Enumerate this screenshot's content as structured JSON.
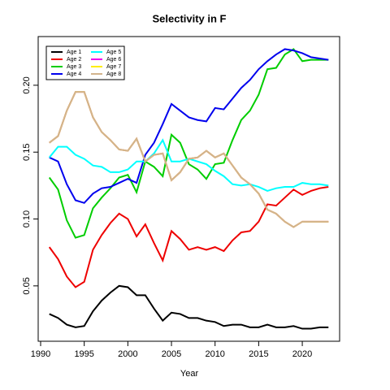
{
  "chart_data": {
    "type": "line",
    "title": "Selectivity in F",
    "x_label": "Year",
    "x": [
      1991,
      1992,
      1993,
      1994,
      1995,
      1996,
      1997,
      1998,
      1999,
      2000,
      2001,
      2002,
      2003,
      2004,
      2005,
      2006,
      2007,
      2008,
      2009,
      2010,
      2011,
      2012,
      2013,
      2014,
      2015,
      2016,
      2017,
      2018,
      2019,
      2020,
      2021,
      2022,
      2023
    ],
    "xlim": [
      1989.72,
      2024.28
    ],
    "xticks": [
      1990,
      1995,
      2000,
      2005,
      2010,
      2015,
      2020
    ],
    "ylim": [
      0.0086,
      0.2364
    ],
    "yticks": [
      {
        "value": 0.05,
        "label": "0.05"
      },
      {
        "value": 0.1,
        "label": "0.10"
      },
      {
        "value": 0.15,
        "label": "0.15"
      },
      {
        "value": 0.2,
        "label": "0.20"
      }
    ],
    "legend": "top-left",
    "series": [
      {
        "name": "Age 1",
        "color": "#000000",
        "values": [
          0.029,
          0.026,
          0.021,
          0.019,
          0.02,
          0.031,
          0.039,
          0.045,
          0.05,
          0.049,
          0.043,
          0.043,
          0.033,
          0.024,
          0.03,
          0.029,
          0.026,
          0.026,
          0.024,
          0.023,
          0.02,
          0.021,
          0.021,
          0.019,
          0.019,
          0.021,
          0.019,
          0.019,
          0.02,
          0.018,
          0.018,
          0.019,
          0.019
        ]
      },
      {
        "name": "Age 2",
        "color": "#ee0000",
        "values": [
          0.079,
          0.07,
          0.057,
          0.049,
          0.053,
          0.077,
          0.088,
          0.097,
          0.104,
          0.1,
          0.087,
          0.096,
          0.082,
          0.069,
          0.091,
          0.085,
          0.077,
          0.079,
          0.077,
          0.079,
          0.076,
          0.084,
          0.09,
          0.091,
          0.098,
          0.111,
          0.11,
          0.116,
          0.122,
          0.118,
          0.121,
          0.123,
          0.124
        ]
      },
      {
        "name": "Age 3",
        "color": "#00cd00",
        "values": [
          0.131,
          0.122,
          0.099,
          0.086,
          0.088,
          0.108,
          0.116,
          0.123,
          0.131,
          0.133,
          0.12,
          0.143,
          0.139,
          0.132,
          0.163,
          0.157,
          0.141,
          0.137,
          0.13,
          0.141,
          0.142,
          0.159,
          0.174,
          0.181,
          0.193,
          0.212,
          0.213,
          0.223,
          0.227,
          0.218,
          0.219,
          0.219,
          0.219
        ]
      },
      {
        "name": "Age 4",
        "color": "#0000ee",
        "values": [
          0.146,
          0.143,
          0.126,
          0.114,
          0.112,
          0.119,
          0.123,
          0.124,
          0.127,
          0.13,
          0.127,
          0.148,
          0.157,
          0.171,
          0.186,
          0.181,
          0.176,
          0.174,
          0.173,
          0.183,
          0.182,
          0.19,
          0.198,
          0.204,
          0.212,
          0.218,
          0.223,
          0.227,
          0.226,
          0.224,
          0.221,
          0.22,
          0.219
        ]
      },
      {
        "name": "Age 5",
        "color": "#00ffff",
        "values": [
          0.146,
          0.154,
          0.154,
          0.148,
          0.145,
          0.14,
          0.139,
          0.135,
          0.135,
          0.137,
          0.143,
          0.143,
          0.149,
          0.159,
          0.143,
          0.143,
          0.145,
          0.143,
          0.141,
          0.136,
          0.132,
          0.126,
          0.125,
          0.126,
          0.124,
          0.121,
          0.123,
          0.124,
          0.124,
          0.127,
          0.126,
          0.126,
          0.125
        ]
      },
      {
        "name": "Age 6",
        "color": "#ee00ee",
        "values": [
          0.157,
          0.162,
          0.181,
          0.195,
          0.195,
          0.176,
          0.165,
          0.159,
          0.152,
          0.151,
          0.16,
          0.143,
          0.148,
          0.149,
          0.129,
          0.135,
          0.145,
          0.146,
          0.151,
          0.146,
          0.149,
          0.14,
          0.131,
          0.126,
          0.119,
          0.107,
          0.104,
          0.098,
          0.094,
          0.098,
          0.098,
          0.098,
          0.098
        ]
      },
      {
        "name": "Age 7",
        "color": "#ffee00",
        "values": [
          0.157,
          0.162,
          0.181,
          0.195,
          0.195,
          0.176,
          0.165,
          0.159,
          0.152,
          0.151,
          0.16,
          0.143,
          0.148,
          0.149,
          0.129,
          0.135,
          0.145,
          0.146,
          0.151,
          0.146,
          0.149,
          0.14,
          0.131,
          0.126,
          0.119,
          0.107,
          0.104,
          0.098,
          0.094,
          0.098,
          0.098,
          0.098,
          0.098
        ]
      },
      {
        "name": "Age 8",
        "color": "#d2b48c",
        "values": [
          0.157,
          0.162,
          0.181,
          0.195,
          0.195,
          0.176,
          0.165,
          0.159,
          0.152,
          0.151,
          0.16,
          0.143,
          0.148,
          0.149,
          0.129,
          0.135,
          0.145,
          0.146,
          0.151,
          0.146,
          0.149,
          0.14,
          0.131,
          0.126,
          0.119,
          0.107,
          0.104,
          0.098,
          0.094,
          0.098,
          0.098,
          0.098,
          0.098
        ]
      }
    ]
  }
}
